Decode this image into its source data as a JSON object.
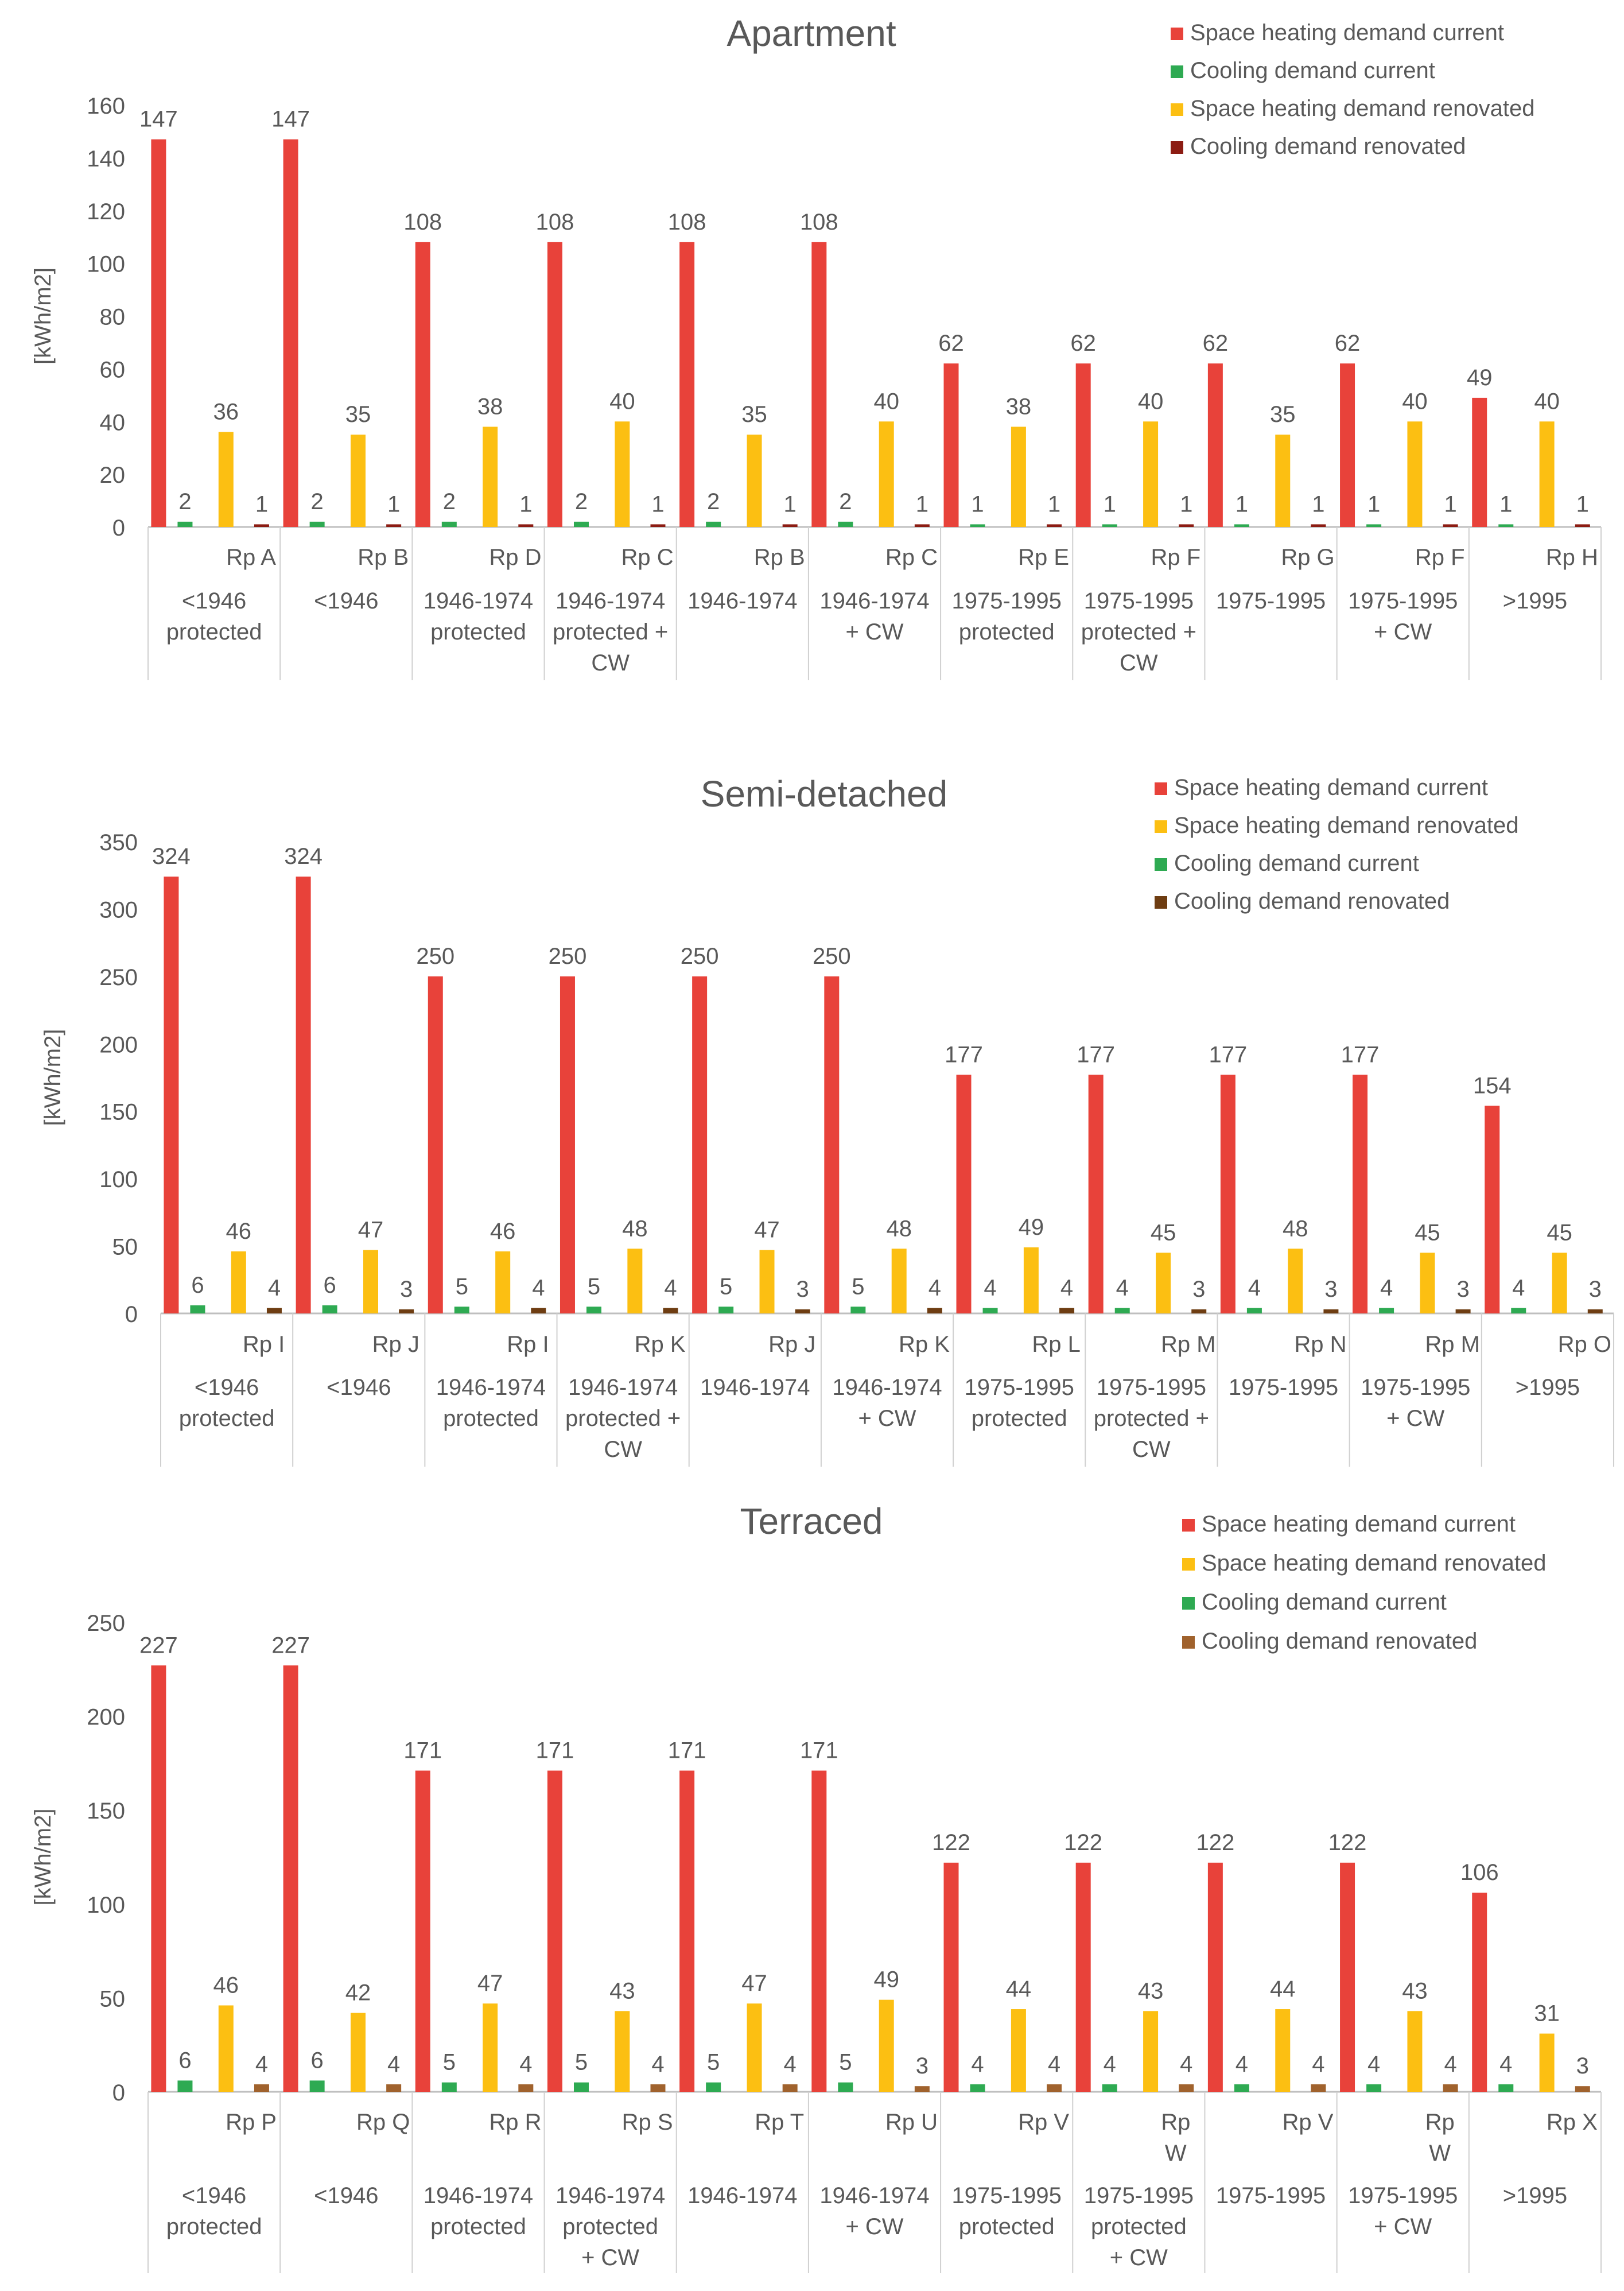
{
  "colors": {
    "space_heating_current": "#e8423a",
    "cooling_current": "#2eaa52",
    "space_heating_renovated": "#fcbf12",
    "cooling_renovated_apartment": "#8c1c13",
    "cooling_renovated_semi": "#6e3d12",
    "cooling_renovated_terraced": "#a0622d",
    "axis": "#bfbfbf",
    "text": "#595959"
  },
  "chart_data": [
    {
      "type": "bar",
      "title": "Apartment",
      "ylabel": "[kWh/m2]",
      "xlabel": "",
      "ylim": [
        0,
        160
      ],
      "yticks": [
        0,
        20,
        40,
        60,
        80,
        100,
        120,
        140,
        160
      ],
      "legend_position": "top-right",
      "legend_order": [
        "Space heating demand current",
        "Cooling demand current",
        "Space heating demand renovated",
        "Cooling demand renovated"
      ],
      "categories": [
        {
          "rp": [
            "Rp A"
          ],
          "period": [
            "<1946",
            "protected"
          ]
        },
        {
          "rp": [
            "Rp B"
          ],
          "period": [
            "<1946"
          ]
        },
        {
          "rp": [
            "Rp D"
          ],
          "period": [
            "1946-1974",
            "protected"
          ]
        },
        {
          "rp": [
            "Rp C"
          ],
          "period": [
            "1946-1974",
            "protected +",
            "CW"
          ]
        },
        {
          "rp": [
            "Rp B"
          ],
          "period": [
            "1946-1974"
          ]
        },
        {
          "rp": [
            "Rp C"
          ],
          "period": [
            "1946-1974",
            "+ CW"
          ]
        },
        {
          "rp": [
            "Rp E"
          ],
          "period": [
            "1975-1995",
            "protected"
          ]
        },
        {
          "rp": [
            "Rp F"
          ],
          "period": [
            "1975-1995",
            "protected +",
            "CW"
          ]
        },
        {
          "rp": [
            "Rp G"
          ],
          "period": [
            "1975-1995"
          ]
        },
        {
          "rp": [
            "Rp F"
          ],
          "period": [
            "1975-1995",
            "+ CW"
          ]
        },
        {
          "rp": [
            "Rp H"
          ],
          "period": [
            ">1995"
          ]
        }
      ],
      "series": [
        {
          "name": "Space heating demand current",
          "values": [
            147,
            147,
            108,
            108,
            108,
            108,
            62,
            62,
            62,
            62,
            49
          ]
        },
        {
          "name": "Cooling demand current",
          "values": [
            2,
            2,
            2,
            2,
            2,
            2,
            1,
            1,
            1,
            1,
            1
          ]
        },
        {
          "name": "Space heating demand renovated",
          "values": [
            36,
            35,
            38,
            40,
            35,
            40,
            38,
            40,
            35,
            40,
            40
          ]
        },
        {
          "name": "Cooling demand renovated",
          "values": [
            1,
            1,
            1,
            1,
            1,
            1,
            1,
            1,
            1,
            1,
            1
          ]
        }
      ]
    },
    {
      "type": "bar",
      "title": "Semi-detached",
      "ylabel": "[kWh/m2]",
      "xlabel": "",
      "ylim": [
        0,
        350
      ],
      "yticks": [
        0,
        50,
        100,
        150,
        200,
        250,
        300,
        350
      ],
      "legend_position": "top-right",
      "legend_order": [
        "Space heating demand current",
        "Space heating demand renovated",
        "Cooling demand current",
        "Cooling demand renovated"
      ],
      "categories": [
        {
          "rp": [
            "Rp I"
          ],
          "period": [
            "<1946",
            "protected"
          ]
        },
        {
          "rp": [
            "Rp J"
          ],
          "period": [
            "<1946"
          ]
        },
        {
          "rp": [
            "Rp I"
          ],
          "period": [
            "1946-1974",
            "protected"
          ]
        },
        {
          "rp": [
            "Rp K"
          ],
          "period": [
            "1946-1974",
            "protected +",
            "CW"
          ]
        },
        {
          "rp": [
            "Rp J"
          ],
          "period": [
            "1946-1974"
          ]
        },
        {
          "rp": [
            "Rp K"
          ],
          "period": [
            "1946-1974",
            "+ CW"
          ]
        },
        {
          "rp": [
            "Rp L"
          ],
          "period": [
            "1975-1995",
            "protected"
          ]
        },
        {
          "rp": [
            "Rp M"
          ],
          "period": [
            "1975-1995",
            "protected +",
            "CW"
          ]
        },
        {
          "rp": [
            "Rp N"
          ],
          "period": [
            "1975-1995"
          ]
        },
        {
          "rp": [
            "Rp M"
          ],
          "period": [
            "1975-1995",
            "+ CW"
          ]
        },
        {
          "rp": [
            "Rp O"
          ],
          "period": [
            ">1995"
          ]
        }
      ],
      "series": [
        {
          "name": "Space heating demand current",
          "values": [
            324,
            324,
            250,
            250,
            250,
            250,
            177,
            177,
            177,
            177,
            154
          ]
        },
        {
          "name": "Cooling demand current",
          "values": [
            6,
            6,
            5,
            5,
            5,
            5,
            4,
            4,
            4,
            4,
            4
          ]
        },
        {
          "name": "Space heating demand renovated",
          "values": [
            46,
            47,
            46,
            48,
            47,
            48,
            49,
            45,
            48,
            45,
            45
          ]
        },
        {
          "name": "Cooling demand renovated",
          "values": [
            4,
            3,
            4,
            4,
            3,
            4,
            4,
            3,
            3,
            3,
            3
          ]
        }
      ]
    },
    {
      "type": "bar",
      "title": "Terraced",
      "ylabel": "[kWh/m2]",
      "xlabel": "",
      "ylim": [
        0,
        250
      ],
      "yticks": [
        0,
        50,
        100,
        150,
        200,
        250
      ],
      "legend_position": "top-right",
      "legend_order": [
        "Space heating demand current",
        "Space heating demand renovated",
        "Cooling demand current",
        "Cooling demand renovated"
      ],
      "categories": [
        {
          "rp": [
            "Rp P"
          ],
          "period": [
            "<1946",
            "protected"
          ]
        },
        {
          "rp": [
            "Rp Q"
          ],
          "period": [
            "<1946"
          ]
        },
        {
          "rp": [
            "Rp R"
          ],
          "period": [
            "1946-1974",
            "protected"
          ]
        },
        {
          "rp": [
            "Rp S"
          ],
          "period": [
            "1946-1974",
            "protected",
            "+ CW"
          ]
        },
        {
          "rp": [
            "Rp T"
          ],
          "period": [
            "1946-1974"
          ]
        },
        {
          "rp": [
            "Rp U"
          ],
          "period": [
            "1946-1974",
            "+ CW"
          ]
        },
        {
          "rp": [
            "Rp V"
          ],
          "period": [
            "1975-1995",
            "protected"
          ]
        },
        {
          "rp": [
            "Rp",
            "W"
          ],
          "period": [
            "1975-1995",
            "protected",
            "+ CW"
          ]
        },
        {
          "rp": [
            "Rp V"
          ],
          "period": [
            "1975-1995"
          ]
        },
        {
          "rp": [
            "Rp",
            "W"
          ],
          "period": [
            "1975-1995",
            "+ CW"
          ]
        },
        {
          "rp": [
            "Rp X"
          ],
          "period": [
            ">1995"
          ]
        }
      ],
      "series": [
        {
          "name": "Space heating demand current",
          "values": [
            227,
            227,
            171,
            171,
            171,
            171,
            122,
            122,
            122,
            122,
            106
          ]
        },
        {
          "name": "Cooling demand current",
          "values": [
            6,
            6,
            5,
            5,
            5,
            5,
            4,
            4,
            4,
            4,
            4
          ]
        },
        {
          "name": "Space heating demand renovated",
          "values": [
            46,
            42,
            47,
            43,
            47,
            49,
            44,
            43,
            44,
            43,
            31
          ]
        },
        {
          "name": "Cooling demand renovated",
          "values": [
            4,
            4,
            4,
            4,
            4,
            3,
            4,
            4,
            4,
            4,
            3
          ]
        }
      ]
    }
  ]
}
